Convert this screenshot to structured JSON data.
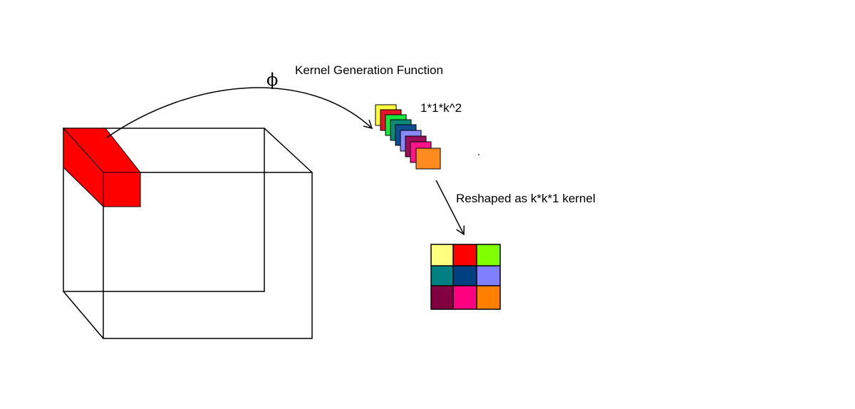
{
  "labels": {
    "kernel_generation": "Kernel Generation Function",
    "phi_symbol": "ϕ",
    "channel_vector": "1*1*k^2",
    "reshaped": "Reshaped as k*k*1 kernel"
  },
  "colors": {
    "selected_patch": "#ff0000",
    "line": "#000000",
    "stack": [
      "#ffff40",
      "#e8122a",
      "#19e63d",
      "#0e8a78",
      "#0f4f8f",
      "#8a8aff",
      "#990f5a",
      "#ff148a",
      "#ff8a1f"
    ],
    "grid": [
      [
        "#ffff80",
        "#ff0000",
        "#80ff00"
      ],
      [
        "#008080",
        "#004080",
        "#8080ff"
      ],
      [
        "#800040",
        "#ff0080",
        "#ff8000"
      ]
    ]
  }
}
